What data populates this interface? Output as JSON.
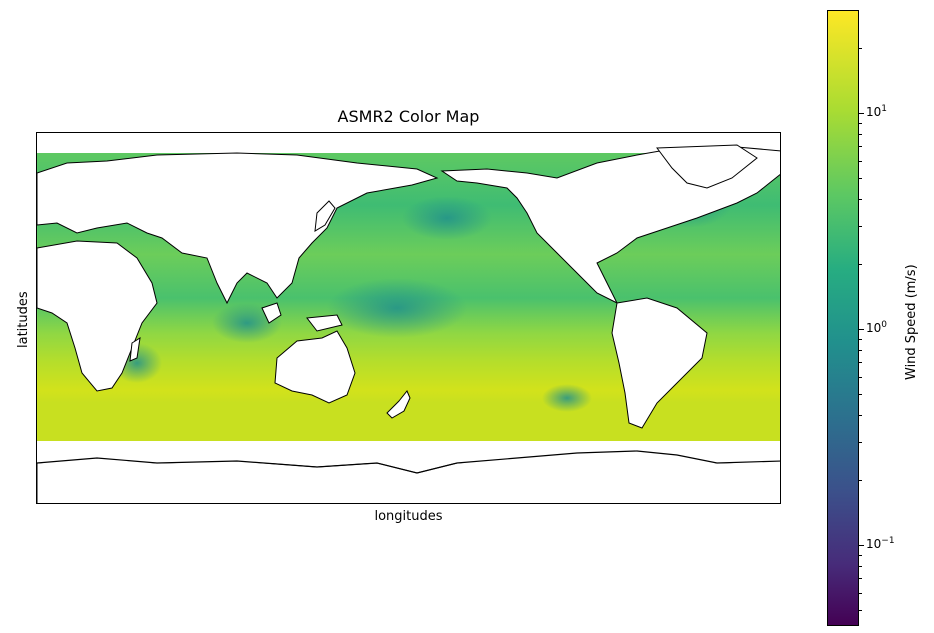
{
  "title": "ASMR2 Color Map",
  "xlabel": "longitudes",
  "ylabel": "latitudes",
  "colorbar": {
    "label": "Wind Speed (m/s)",
    "scale": "log",
    "colormap": "viridis",
    "range": [
      0.045,
      28
    ],
    "ticks": [
      {
        "value": 10,
        "base": "10",
        "exp": "1"
      },
      {
        "value": 1,
        "base": "10",
        "exp": "0"
      },
      {
        "value": 0.1,
        "base": "10",
        "exp": "−1"
      }
    ]
  },
  "map": {
    "projection": "cylindrical, centered on 180°",
    "ocean_field": "wind speed",
    "land_color": "#ffffff",
    "coastline_color": "#000000"
  }
}
